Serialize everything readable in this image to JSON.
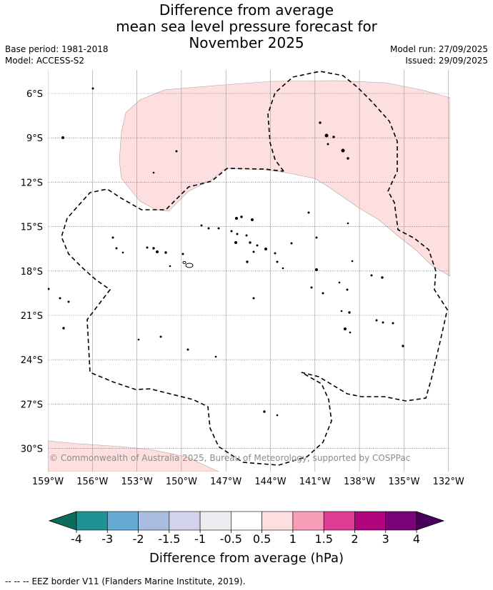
{
  "header": {
    "title_line1": "Difference from average",
    "title_line2": "mean sea level pressure forecast for",
    "title_line3": "November 2025",
    "base_period": "Base period: 1981-2018",
    "model": "Model: ACCESS-S2",
    "model_run": "Model run: 27/09/2025",
    "issued": "Issued: 29/09/2025"
  },
  "map": {
    "lat_labels": [
      "6°S",
      "9°S",
      "12°S",
      "15°S",
      "18°S",
      "21°S",
      "24°S",
      "27°S",
      "30°S"
    ],
    "lon_labels": [
      "159°W",
      "156°W",
      "153°W",
      "150°W",
      "147°W",
      "144°W",
      "141°W",
      "138°W",
      "135°W",
      "132°W"
    ],
    "attribution": "© Commonwealth of Australia 2025, Bureau of Meteorology, supported by COSPPac",
    "anomaly_fill_color": "#fddfdf",
    "anomaly_category": "0.5 to 1"
  },
  "colorbar": {
    "tick_labels": [
      "-4",
      "-3",
      "-2",
      "-1.5",
      "-1",
      "-0.5",
      "0.5",
      "1",
      "1.5",
      "2",
      "3",
      "4"
    ],
    "colors": [
      "#0b6b5c",
      "#1e9396",
      "#66abd3",
      "#a8bde0",
      "#d2d3ea",
      "#ececf0",
      "#ffffff",
      "#fddfdf",
      "#f99eb8",
      "#df3c96",
      "#b1047c",
      "#7a0177",
      "#49005a"
    ],
    "label": "Difference from average (hPa)"
  },
  "footer": {
    "legend_symbol": "-- -- --",
    "legend_text": "EEZ border V11 (Flanders Marine Institute, 2019)."
  }
}
